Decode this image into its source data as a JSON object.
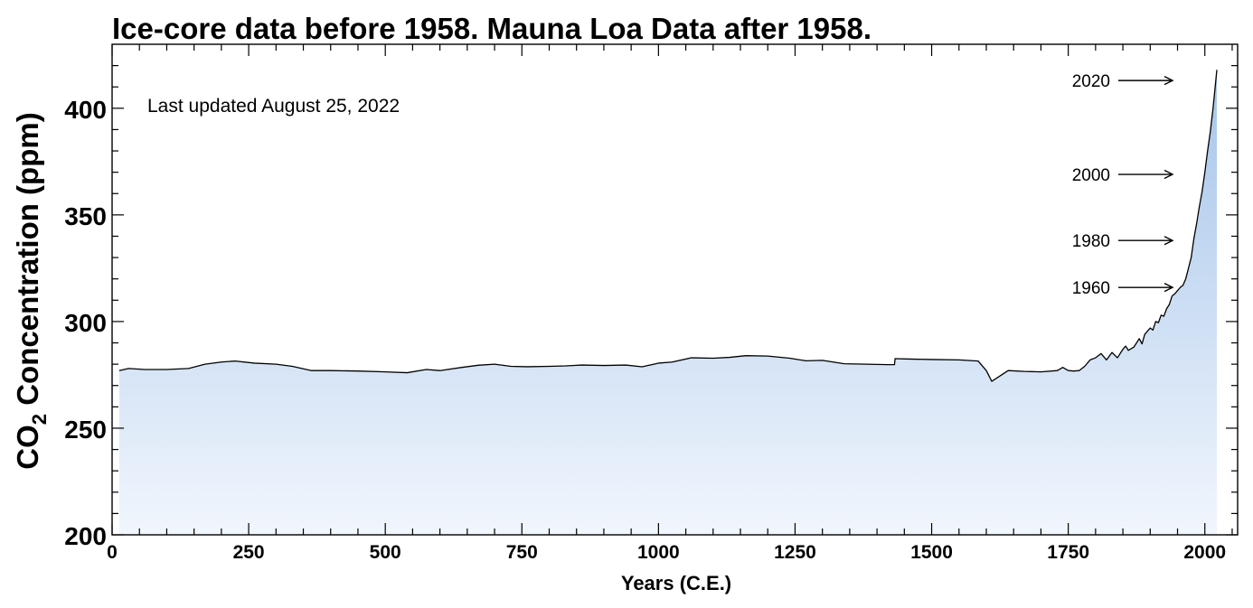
{
  "chart_data": {
    "type": "area",
    "title": "Ice-core data before 1958. Mauna Loa Data after 1958.",
    "xlabel": "Years (C.E.)",
    "ylabel_main": "CO",
    "ylabel_sub": "2",
    "ylabel_rest": " Concentration (ppm)",
    "note": "Last updated August 25, 2022",
    "xlim": [
      0,
      2060
    ],
    "ylim": [
      200,
      430
    ],
    "x_ticks": [
      0,
      250,
      500,
      750,
      1000,
      1250,
      1500,
      1750,
      2000
    ],
    "y_ticks": [
      200,
      250,
      300,
      350,
      400
    ],
    "x_tick_labels": [
      "0",
      "250",
      "500",
      "750",
      "1000",
      "1250",
      "1500",
      "1750",
      "2000"
    ],
    "y_tick_labels": [
      "200",
      "250",
      "300",
      "350",
      "400"
    ],
    "colors": {
      "fill_top": "#a6c5ea",
      "fill_bottom": "#f1f6fd",
      "line": "#000000"
    },
    "series": [
      {
        "x": [
          13,
          30,
          60,
          100,
          140,
          170,
          200,
          225,
          260,
          300,
          330,
          365,
          400,
          450,
          500,
          540,
          575,
          600,
          640,
          670,
          700,
          730,
          760,
          800,
          830,
          860,
          900,
          940,
          970,
          1000,
          1025,
          1060,
          1100,
          1130,
          1160,
          1200,
          1240,
          1270,
          1300,
          1340,
          1380,
          1420,
          1432,
          1433,
          1460,
          1500,
          1550,
          1585,
          1600,
          1610,
          1640,
          1670,
          1700,
          1730,
          1740,
          1750,
          1760,
          1770,
          1780,
          1790,
          1800,
          1810,
          1820,
          1830,
          1840,
          1850,
          1855,
          1860,
          1870,
          1880,
          1885,
          1890,
          1900,
          1905,
          1910,
          1915,
          1920,
          1925,
          1930,
          1935,
          1940,
          1945,
          1950,
          1955,
          1960,
          1965,
          1970,
          1975,
          1980,
          1985,
          1990,
          1995,
          2000,
          2005,
          2010,
          2015,
          2020,
          2022
        ],
        "y": [
          277,
          278,
          277.5,
          277.5,
          278,
          280,
          281,
          281.5,
          280.5,
          280,
          279,
          277,
          277,
          276.8,
          276.4,
          276,
          277.5,
          277,
          278.5,
          279.5,
          280,
          279,
          278.8,
          279,
          279.2,
          279.6,
          279.4,
          279.6,
          278.8,
          280.5,
          281,
          283,
          282.8,
          283.2,
          284,
          283.8,
          282.8,
          281.6,
          281.8,
          280.2,
          280,
          279.8,
          279.8,
          282.6,
          282.4,
          282.2,
          282,
          281.5,
          277,
          272,
          277,
          276.6,
          276.4,
          277,
          278.5,
          277,
          276.8,
          277,
          279,
          282,
          283,
          285,
          282,
          285.5,
          283,
          287,
          288.5,
          286.5,
          288,
          292,
          289.5,
          294,
          297,
          296,
          300,
          299.5,
          303,
          302.5,
          306,
          308,
          312,
          313,
          314.5,
          316,
          317,
          320,
          325,
          330,
          339,
          346,
          354,
          361,
          370,
          380,
          389,
          400,
          413,
          418
        ]
      }
    ],
    "annotations": [
      {
        "label": "1960",
        "y": 316
      },
      {
        "label": "1980",
        "y": 338
      },
      {
        "label": "2000",
        "y": 369
      },
      {
        "label": "2020",
        "y": 413
      }
    ]
  }
}
